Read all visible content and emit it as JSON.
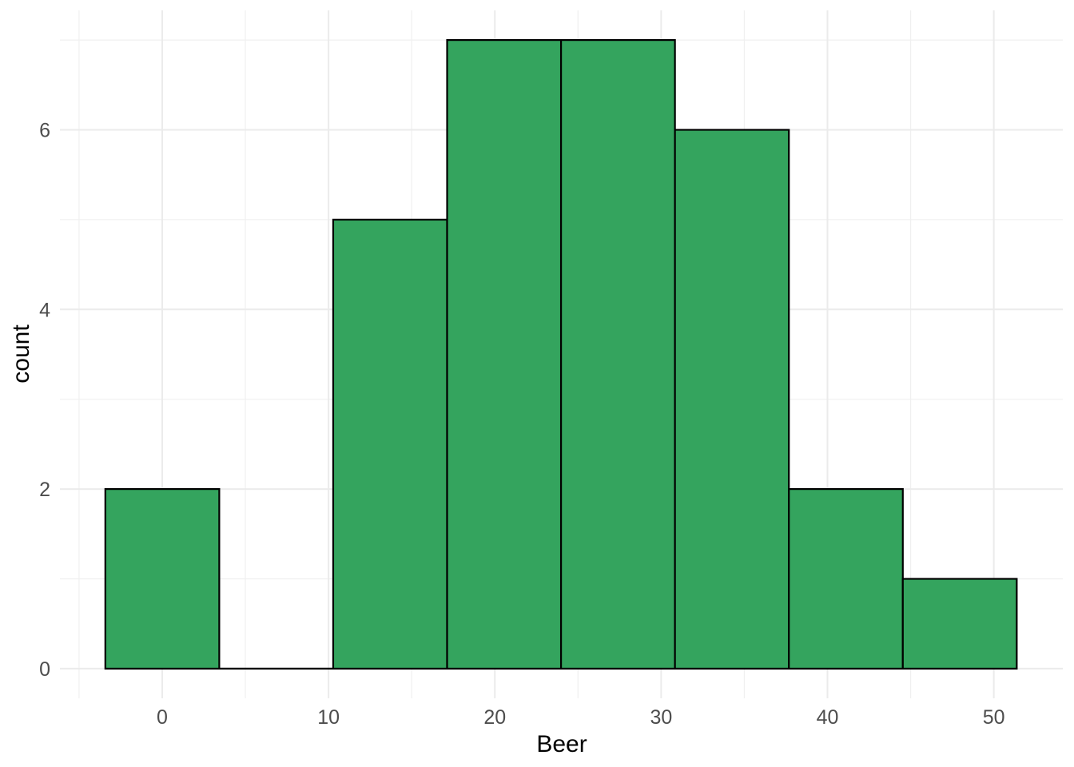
{
  "chart_data": {
    "type": "bar",
    "subtype": "histogram",
    "xlabel": "Beer",
    "ylabel": "count",
    "bin_edges": [
      -3.42,
      3.43,
      10.28,
      17.13,
      23.98,
      30.83,
      37.68,
      44.53,
      51.38
    ],
    "counts": [
      2,
      0,
      5,
      7,
      7,
      6,
      2,
      1
    ],
    "x_ticks_major": [
      0,
      10,
      20,
      30,
      40,
      50
    ],
    "x_ticks_minor": [
      -5,
      5,
      15,
      25,
      35,
      45
    ],
    "y_ticks_major": [
      0,
      2,
      4,
      6
    ],
    "y_ticks_minor": [
      1,
      3,
      5,
      7
    ],
    "xlim": [
      -6.15,
      54.15
    ],
    "ylim": [
      -0.33,
      7.33
    ],
    "grid": true,
    "legend_position": "none",
    "colors": {
      "bar_fill": "#34A45E",
      "bar_stroke": "#000000",
      "grid_major": "#EBEBEB",
      "grid_minor": "#F0F0F0",
      "tick_label": "#4D4D4D",
      "axis_title": "#000000",
      "background": "#FFFFFF"
    }
  }
}
